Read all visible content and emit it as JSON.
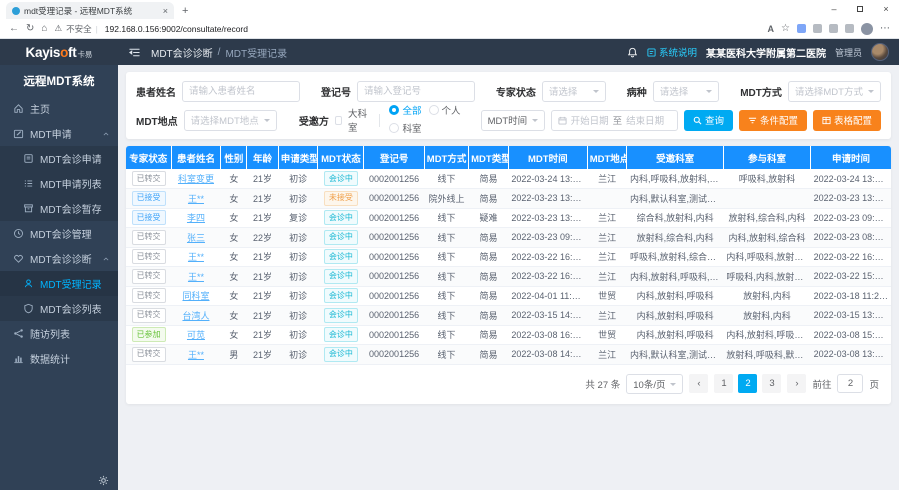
{
  "colors": {
    "header_bg": "#2d3a4b",
    "sidebar_bg": "#304156",
    "table_header_bg": "#1890ff",
    "primary_cyan": "#00aaf2",
    "button_orange": "#f8821c",
    "active_menu": "#00b4ff",
    "logo_accent": "#ff7a1c"
  },
  "browser": {
    "tab_title": "mdt受理记录 - 远程MDT系统",
    "security_label": "不安全",
    "url": "192.168.0.156:9002/consultate/record",
    "read_aloud": "A"
  },
  "header": {
    "logo_main": "Kayis",
    "logo_o": "o",
    "logo_rest": "ft",
    "logo_suffix": "卡易",
    "breadcrumb_parent": "MDT会诊诊断",
    "breadcrumb_sep": "/",
    "breadcrumb_current": "MDT受理记录",
    "system_help": "系统说明",
    "hospital": "某某医科大学附属第二医院",
    "user_role": "管理员"
  },
  "sidebar": {
    "title": "远程MDT系统",
    "items": [
      {
        "key": "home",
        "icon": "home-icon",
        "label": "主页"
      },
      {
        "key": "mdt-apply",
        "icon": "edit-icon",
        "label": "MDT申请",
        "expanded": true,
        "children": [
          {
            "key": "mdt-consult-apply",
            "icon": "form-icon",
            "label": "MDT会诊申请"
          },
          {
            "key": "mdt-apply-list",
            "icon": "list-icon",
            "label": "MDT申请列表"
          },
          {
            "key": "mdt-consult-draft",
            "icon": "archive-icon",
            "label": "MDT会诊暂存"
          }
        ]
      },
      {
        "key": "mdt-manage",
        "icon": "clock-icon",
        "label": "MDT会诊管理"
      },
      {
        "key": "mdt-diagnosis",
        "icon": "heart-icon",
        "label": "MDT会诊诊断",
        "expanded": true,
        "children": [
          {
            "key": "mdt-record",
            "icon": "user-icon",
            "label": "MDT受理记录",
            "active": true
          },
          {
            "key": "mdt-consult-list",
            "icon": "shield-icon",
            "label": "MDT会诊列表"
          }
        ]
      },
      {
        "key": "followup",
        "icon": "share-icon",
        "label": "随访列表"
      },
      {
        "key": "stats",
        "icon": "chart-icon",
        "label": "数据统计"
      }
    ]
  },
  "filters": {
    "patient_name": {
      "label": "患者姓名",
      "placeholder": "请输入患者姓名"
    },
    "register_no": {
      "label": "登记号",
      "placeholder": "请输入登记号"
    },
    "expert_status": {
      "label": "专家状态",
      "placeholder": "请选择"
    },
    "disease": {
      "label": "病种",
      "placeholder": "请选择"
    },
    "mdt_mode": {
      "label": "MDT方式",
      "placeholder": "请选择MDT方式"
    },
    "mdt_place": {
      "label": "MDT地点",
      "placeholder": "请选择MDT地点"
    },
    "invitee_label": "受邀方",
    "invitee_checkbox": "大科室",
    "invitee_radios": [
      "全部",
      "个人",
      "科室"
    ],
    "invitee_selected": "全部",
    "time_field": "MDT时间",
    "date_start": "开始日期",
    "date_sep": "至",
    "date_end": "结束日期",
    "search_btn": "查询",
    "condition_btn": "条件配置",
    "table_btn": "表格配置"
  },
  "table": {
    "columns": [
      "专家状态",
      "患者姓名",
      "性别",
      "年龄",
      "申请类型",
      "MDT状态",
      "登记号",
      "MDT方式",
      "MDT类型",
      "MDT时间",
      "MDT地点",
      "受邀科室",
      "参与科室",
      "申请时间"
    ],
    "rows": [
      {
        "expert_status": "已转交",
        "expert_status_type": "plain",
        "patient_name": "科室变更",
        "gender": "女",
        "age": "21岁",
        "apply_type": "初诊",
        "mdt_status": "会诊中",
        "mdt_status_type": "cyan",
        "register_no": "0002001256",
        "mdt_mode": "线下",
        "mdt_type": "简易",
        "mdt_time": "2022-03-24 13:40:00",
        "mdt_place": "兰江",
        "invited_depts": "内科,呼吸科,放射科,综合科",
        "joined_depts": "呼吸科,放射科",
        "apply_time": "2022-03-24 13:37:44"
      },
      {
        "expert_status": "已接受",
        "expert_status_type": "blue",
        "patient_name": "王**",
        "gender": "女",
        "age": "21岁",
        "apply_type": "初诊",
        "mdt_status": "未接受",
        "mdt_status_type": "orange",
        "register_no": "0002001256",
        "mdt_mode": "院外线上",
        "mdt_type": "简易",
        "mdt_time": "2022-03-23 13:50:00",
        "mdt_place": "",
        "invited_depts": "内科,默认科室,测试科室,放射科",
        "joined_depts": "",
        "apply_time": "2022-03-23 13:41:45"
      },
      {
        "expert_status": "已接受",
        "expert_status_type": "blue",
        "patient_name": "李四",
        "gender": "女",
        "age": "21岁",
        "apply_type": "复诊",
        "mdt_status": "会诊中",
        "mdt_status_type": "cyan",
        "register_no": "0002001256",
        "mdt_mode": "线下",
        "mdt_type": "疑难",
        "mdt_time": "2022-03-23 13:00:00",
        "mdt_place": "兰江",
        "invited_depts": "综合科,放射科,内科",
        "joined_depts": "放射科,综合科,内科",
        "apply_time": "2022-03-23 09:35:39"
      },
      {
        "expert_status": "已转交",
        "expert_status_type": "plain",
        "patient_name": "张三",
        "gender": "女",
        "age": "22岁",
        "apply_type": "初诊",
        "mdt_status": "会诊中",
        "mdt_status_type": "cyan",
        "register_no": "0002001256",
        "mdt_mode": "线下",
        "mdt_type": "简易",
        "mdt_time": "2022-03-23 09:20:00",
        "mdt_place": "兰江",
        "invited_depts": "放射科,综合科,内科",
        "joined_depts": "内科,放射科,综合科",
        "apply_time": "2022-03-23 08:49:53"
      },
      {
        "expert_status": "已转交",
        "expert_status_type": "plain",
        "patient_name": "王**",
        "gender": "女",
        "age": "21岁",
        "apply_type": "初诊",
        "mdt_status": "会诊中",
        "mdt_status_type": "cyan",
        "register_no": "0002001256",
        "mdt_mode": "线下",
        "mdt_type": "简易",
        "mdt_time": "2022-03-22 16:40:00",
        "mdt_place": "兰江",
        "invited_depts": "呼吸科,放射科,综合科,内科",
        "joined_depts": "内科,呼吸科,放射科,综合科",
        "apply_time": "2022-03-22 16:31:36"
      },
      {
        "expert_status": "已转交",
        "expert_status_type": "plain",
        "patient_name": "王**",
        "gender": "女",
        "age": "21岁",
        "apply_type": "初诊",
        "mdt_status": "会诊中",
        "mdt_status_type": "cyan",
        "register_no": "0002001256",
        "mdt_mode": "线下",
        "mdt_type": "简易",
        "mdt_time": "2022-03-22 16:50:00",
        "mdt_place": "兰江",
        "invited_depts": "内科,放射科,呼吸科,影像科",
        "joined_depts": "呼吸科,内科,放射科,影像科",
        "apply_time": "2022-03-22 15:57:03"
      },
      {
        "expert_status": "已转交",
        "expert_status_type": "plain",
        "patient_name": "同科室",
        "gender": "女",
        "age": "21岁",
        "apply_type": "初诊",
        "mdt_status": "会诊中",
        "mdt_status_type": "cyan",
        "register_no": "0002001256",
        "mdt_mode": "线下",
        "mdt_type": "简易",
        "mdt_time": "2022-04-01 11:00:00",
        "mdt_place": "世贸",
        "invited_depts": "内科,放射科,呼吸科",
        "joined_depts": "放射科,内科",
        "apply_time": "2022-03-18 11:28:25"
      },
      {
        "expert_status": "已转交",
        "expert_status_type": "plain",
        "patient_name": "台湾人",
        "gender": "女",
        "age": "21岁",
        "apply_type": "初诊",
        "mdt_status": "会诊中",
        "mdt_status_type": "cyan",
        "register_no": "0002001256",
        "mdt_mode": "线下",
        "mdt_type": "简易",
        "mdt_time": "2022-03-15 14:00:00",
        "mdt_place": "兰江",
        "invited_depts": "内科,放射科,呼吸科",
        "joined_depts": "放射科,内科",
        "apply_time": "2022-03-15 13:16:26"
      },
      {
        "expert_status": "已参加",
        "expert_status_type": "green",
        "patient_name": "可苋",
        "gender": "女",
        "age": "21岁",
        "apply_type": "初诊",
        "mdt_status": "会诊中",
        "mdt_status_type": "cyan",
        "register_no": "0002001256",
        "mdt_mode": "线下",
        "mdt_type": "简易",
        "mdt_time": "2022-03-08 16:00:00",
        "mdt_place": "世贸",
        "invited_depts": "内科,放射科,呼吸科",
        "joined_depts": "内科,放射科,呼吸科,测试科室",
        "apply_time": "2022-03-08 15:24:58"
      },
      {
        "expert_status": "已转交",
        "expert_status_type": "plain",
        "patient_name": "王**",
        "gender": "男",
        "age": "21岁",
        "apply_type": "初诊",
        "mdt_status": "会诊中",
        "mdt_status_type": "cyan",
        "register_no": "0002001256",
        "mdt_mode": "线下",
        "mdt_type": "简易",
        "mdt_time": "2022-03-08 14:10:00",
        "mdt_place": "兰江",
        "invited_depts": "内科,默认科室,测试科室",
        "joined_depts": "放射科,呼吸科,默认科室,测...",
        "apply_time": "2022-03-08 13:06:56"
      }
    ]
  },
  "pagination": {
    "total": "共 27 条",
    "page_size": "10条/页",
    "pages": [
      "1",
      "2",
      "3"
    ],
    "active_page": "2",
    "goto_label": "前往",
    "goto_value": "2",
    "goto_unit": "页"
  }
}
